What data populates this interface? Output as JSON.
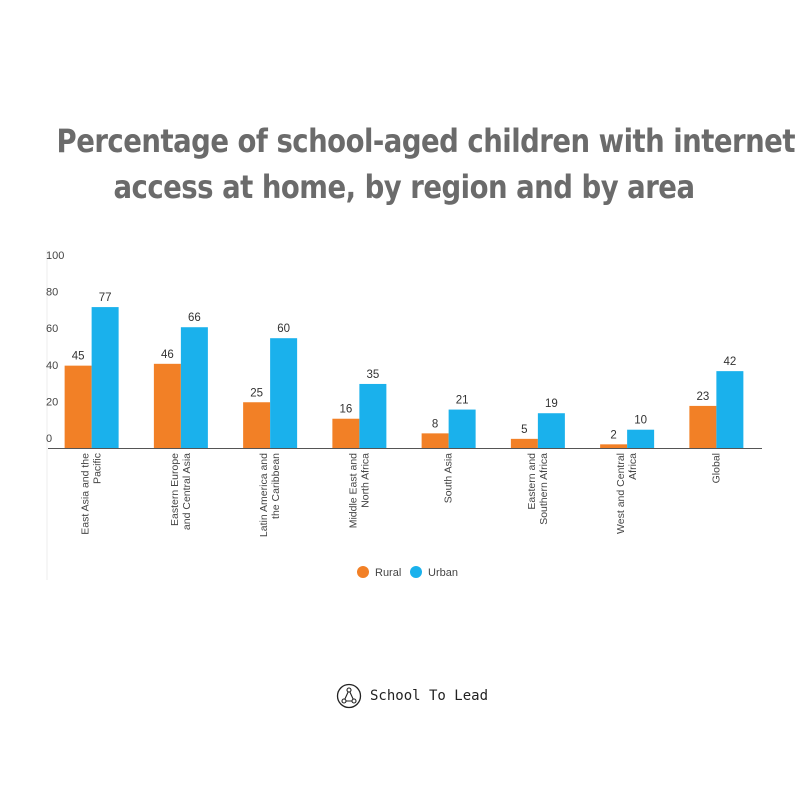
{
  "title_lines": [
    "Percentage of school-aged children with internet",
    "access at home, by region and by area"
  ],
  "brand": {
    "name": "School To Lead",
    "icon": "triangle-nodes-logo"
  },
  "colors": {
    "rural": "#f28026",
    "urban": "#1ab1ec",
    "axis": "#555555",
    "text": "#444444"
  },
  "chart_data": {
    "type": "bar",
    "title": "Percentage of school-aged children with internet access at home, by region and by area",
    "xlabel": "",
    "ylabel": "",
    "ylim": [
      0,
      100
    ],
    "yticks": [
      0,
      20,
      40,
      60,
      80,
      100
    ],
    "grid": false,
    "legend": "bottom",
    "categories": [
      [
        "East Asia and the",
        "Pacific"
      ],
      [
        "Eastern Europe",
        "and Central Asia"
      ],
      [
        "Latin America and",
        "the Caribbean"
      ],
      [
        "Middle East and",
        "North Africa"
      ],
      [
        "South Asia"
      ],
      [
        "Eastern and",
        "Southern Africa"
      ],
      [
        "West and Central",
        "Africa"
      ],
      [
        "Global"
      ]
    ],
    "series": [
      {
        "name": "Rural",
        "values": [
          45,
          46,
          25,
          16,
          8,
          5,
          2,
          23
        ]
      },
      {
        "name": "Urban",
        "values": [
          77,
          66,
          60,
          35,
          21,
          19,
          10,
          42
        ]
      }
    ]
  }
}
